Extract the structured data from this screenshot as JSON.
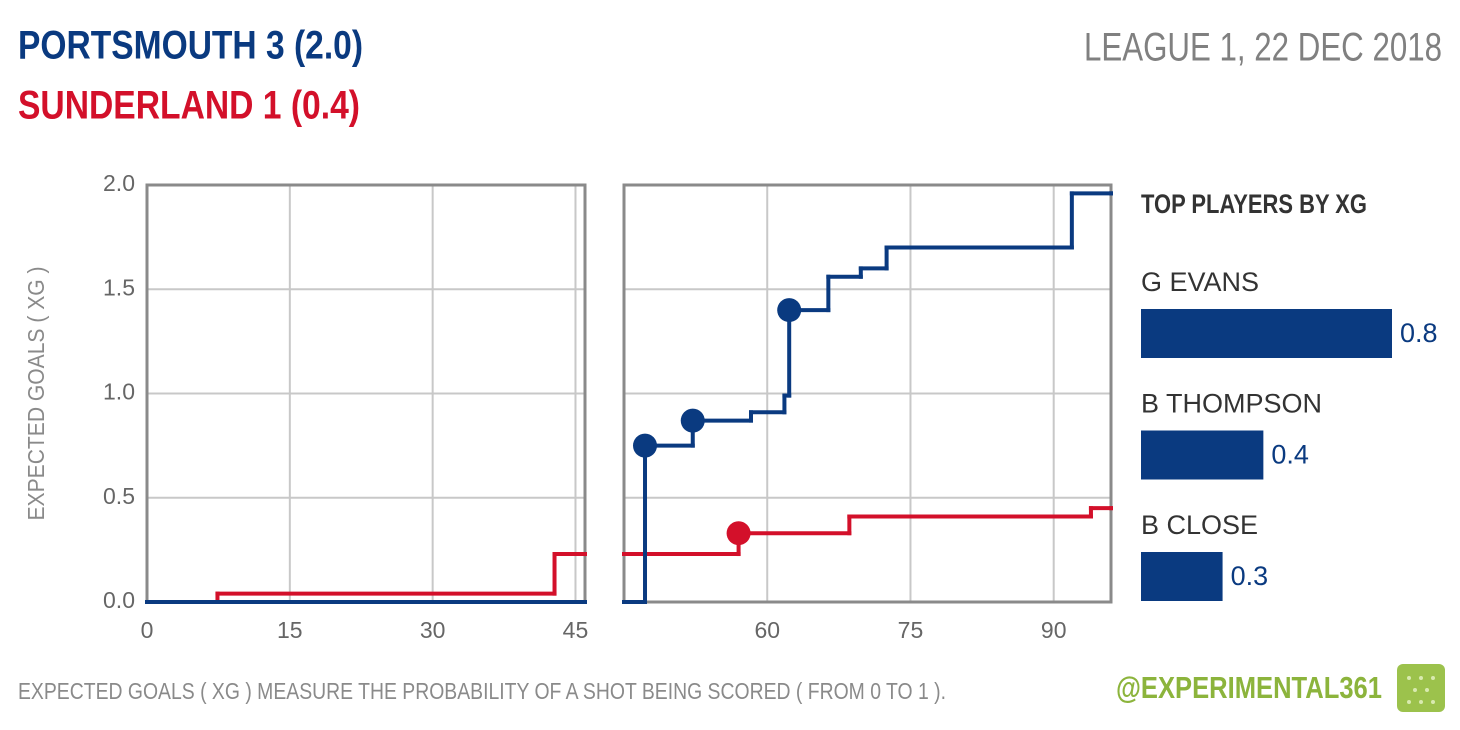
{
  "header": {
    "home": "PORTSMOUTH 3 (2.0)",
    "away": "SUNDERLAND 1 (0.4)",
    "competition": "LEAGUE 1, 22 DEC 2018"
  },
  "footer": {
    "note": "EXPECTED GOALS ( XG ) MEASURE THE PROBABILITY OF A SHOT BEING SCORED ( FROM 0 TO 1 ).",
    "credit": "@EXPERIMENTAL361"
  },
  "chart_data": [
    {
      "type": "line",
      "step": "post",
      "ylabel": "EXPECTED GOALS ( XG )",
      "grid": true,
      "xlim": [
        0,
        46
      ],
      "xticks": [
        0,
        15,
        30,
        45
      ],
      "ylim": [
        0,
        2
      ],
      "yticks": [
        {
          "value": 0,
          "label": "0.0"
        },
        {
          "value": 0.5,
          "label": "0.5"
        },
        {
          "value": 1,
          "label": "1.0"
        },
        {
          "value": 1.5,
          "label": "1.5"
        },
        {
          "value": 2,
          "label": "2.0"
        }
      ],
      "series": [
        {
          "name": "Sunderland",
          "color": "#d3102a",
          "x": [
            0,
            7.4,
            42.8,
            46
          ],
          "values": [
            0,
            0.04,
            0.23,
            0.23
          ]
        },
        {
          "name": "Portsmouth",
          "color": "#0a3a80",
          "x": [
            0,
            46
          ],
          "values": [
            0,
            0
          ]
        }
      ]
    },
    {
      "type": "line",
      "step": "post",
      "grid": true,
      "xlim": [
        45,
        96
      ],
      "xticks": [
        60,
        75,
        90
      ],
      "ylim": [
        0,
        2
      ],
      "series": [
        {
          "name": "Sunderland",
          "color": "#d3102a",
          "x": [
            45,
            57,
            68.6,
            93.9,
            96
          ],
          "values": [
            0.23,
            0.33,
            0.41,
            0.45,
            0.45
          ],
          "goals": {
            "x": [
              57
            ],
            "values": [
              0.33
            ]
          }
        },
        {
          "name": "Portsmouth",
          "color": "#0a3a80",
          "x": [
            45,
            47.2,
            52.2,
            58.3,
            61.8,
            62.3,
            66.4,
            69.8,
            72.5,
            91.9,
            96
          ],
          "values": [
            0,
            0.75,
            0.87,
            0.91,
            0.99,
            1.4,
            1.56,
            1.6,
            1.7,
            1.96,
            1.96
          ],
          "goals": {
            "x": [
              47.2,
              52.2,
              62.3
            ],
            "values": [
              0.75,
              0.87,
              1.4
            ]
          }
        }
      ]
    },
    {
      "type": "bar",
      "orientation": "horizontal",
      "title": "TOP PLAYERS BY XG",
      "color": "#0a3a80",
      "categories": [
        "G EVANS",
        "B THOMPSON",
        "B CLOSE"
      ],
      "values": [
        0.8,
        0.39,
        0.26
      ],
      "value_labels": [
        "0.8",
        "0.4",
        "0.3"
      ],
      "xlim": [
        0,
        0.8
      ]
    }
  ]
}
